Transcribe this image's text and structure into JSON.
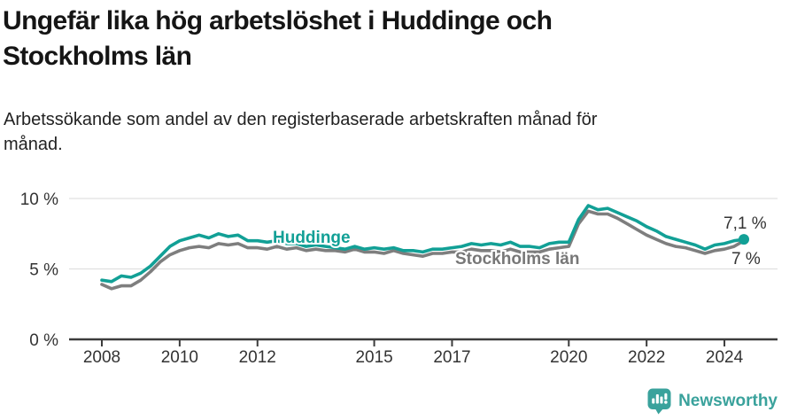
{
  "header": {
    "title": "Ungefär lika hög arbetslöshet i Huddinge och Stockholms län",
    "subtitle": "Arbetssökande som andel av den registerbaserade arbetskraften månad för månad."
  },
  "chart_data": {
    "type": "line",
    "title": "Ungefär lika hög arbetslöshet i Huddinge och Stockholms län",
    "xlabel": "",
    "ylabel": "",
    "ylim": [
      0,
      10
    ],
    "grid": "horizontal",
    "legend_position": "inline-labels-on-lines",
    "x_unit": "decimal_year",
    "x": [
      2008,
      2008.25,
      2008.5,
      2008.75,
      2009,
      2009.25,
      2009.5,
      2009.75,
      2010,
      2010.25,
      2010.5,
      2010.75,
      2011,
      2011.25,
      2011.5,
      2011.75,
      2012,
      2012.25,
      2012.5,
      2012.75,
      2013,
      2013.25,
      2013.5,
      2013.75,
      2014,
      2014.25,
      2014.5,
      2014.75,
      2015,
      2015.25,
      2015.5,
      2015.75,
      2016,
      2016.25,
      2016.5,
      2016.75,
      2017,
      2017.25,
      2017.5,
      2017.75,
      2018,
      2018.25,
      2018.5,
      2018.75,
      2019,
      2019.25,
      2019.5,
      2019.75,
      2020,
      2020.25,
      2020.5,
      2020.75,
      2021,
      2021.25,
      2021.5,
      2021.75,
      2022,
      2022.25,
      2022.5,
      2022.75,
      2023,
      2023.25,
      2023.5,
      2023.75,
      2024,
      2024.25,
      2024.5
    ],
    "series": [
      {
        "name": "Huddinge",
        "color": "#12a096",
        "values": [
          4.2,
          4.1,
          4.5,
          4.4,
          4.7,
          5.2,
          5.9,
          6.6,
          7.0,
          7.2,
          7.4,
          7.2,
          7.5,
          7.3,
          7.4,
          7.0,
          7.0,
          6.9,
          7.0,
          6.8,
          6.8,
          6.6,
          6.7,
          6.6,
          6.5,
          6.4,
          6.6,
          6.4,
          6.5,
          6.4,
          6.5,
          6.3,
          6.3,
          6.2,
          6.4,
          6.4,
          6.5,
          6.6,
          6.8,
          6.7,
          6.8,
          6.7,
          6.9,
          6.6,
          6.6,
          6.5,
          6.8,
          6.9,
          6.9,
          8.5,
          9.5,
          9.2,
          9.3,
          9.0,
          8.7,
          8.4,
          8.0,
          7.7,
          7.3,
          7.1,
          6.9,
          6.7,
          6.4,
          6.7,
          6.8,
          7.0,
          7.1
        ]
      },
      {
        "name": "Stockholms län",
        "color": "#7e7e7e",
        "values": [
          3.9,
          3.6,
          3.8,
          3.8,
          4.2,
          4.8,
          5.5,
          6.0,
          6.3,
          6.5,
          6.6,
          6.5,
          6.8,
          6.7,
          6.8,
          6.5,
          6.5,
          6.4,
          6.6,
          6.4,
          6.5,
          6.3,
          6.4,
          6.3,
          6.3,
          6.2,
          6.4,
          6.2,
          6.2,
          6.1,
          6.3,
          6.1,
          6.0,
          5.9,
          6.1,
          6.1,
          6.2,
          6.2,
          6.4,
          6.3,
          6.3,
          6.2,
          6.4,
          6.2,
          6.2,
          6.2,
          6.4,
          6.5,
          6.6,
          8.2,
          9.1,
          8.9,
          8.9,
          8.6,
          8.2,
          7.8,
          7.4,
          7.1,
          6.8,
          6.6,
          6.5,
          6.3,
          6.1,
          6.3,
          6.4,
          6.6,
          7.0
        ]
      }
    ],
    "y_ticks": [
      {
        "value": 0,
        "label": "0 %"
      },
      {
        "value": 5,
        "label": "5 %"
      },
      {
        "value": 10,
        "label": "10 %"
      }
    ],
    "x_ticks": [
      {
        "value": 2008,
        "label": "2008"
      },
      {
        "value": 2010,
        "label": "2010"
      },
      {
        "value": 2012,
        "label": "2012"
      },
      {
        "value": 2015,
        "label": "2015"
      },
      {
        "value": 2017,
        "label": "2017"
      },
      {
        "value": 2020,
        "label": "2020"
      },
      {
        "value": 2022,
        "label": "2022"
      },
      {
        "value": 2024,
        "label": "2024"
      }
    ],
    "annotations": {
      "huddinge_end_label": "7,1 %",
      "stockholm_end_label": "7 %"
    },
    "colors": {
      "gridline": "#e0e0e0",
      "axis_line": "#3c3c3c",
      "axis_text": "#333333",
      "huddinge_label": "#12a096",
      "stockholm_label": "#777777"
    }
  },
  "footer": {
    "brand": "Newsworthy",
    "brand_color": "#3aa29c",
    "logo_icon": "bar-chart-exclamation-pin"
  }
}
